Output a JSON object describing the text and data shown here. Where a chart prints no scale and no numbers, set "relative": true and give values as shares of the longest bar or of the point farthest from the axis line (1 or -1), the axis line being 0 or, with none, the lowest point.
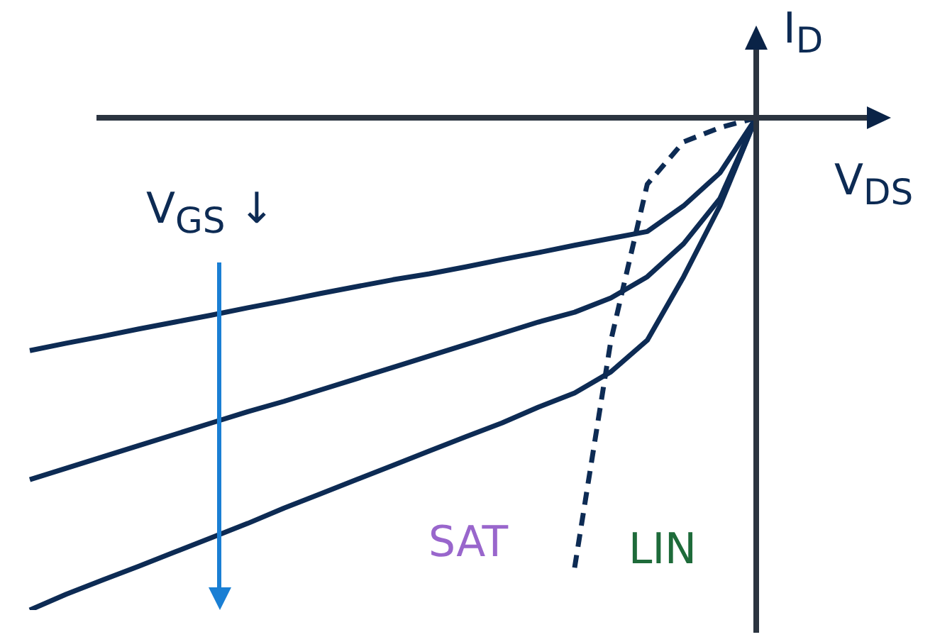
{
  "chart_data": {
    "type": "line",
    "relative": true,
    "xlabel": "V$_{DS}$",
    "ylabel": "I$_{D}$",
    "annotations": [
      "V$_{GS}$ ↓",
      "SAT",
      "LIN"
    ],
    "categories": [
      null,
      null,
      null,
      null,
      null,
      null,
      null,
      null,
      null,
      null,
      null,
      null,
      null,
      null,
      null,
      null,
      null,
      null,
      null,
      null,
      null
    ],
    "grid": false,
    "legend": false,
    "marker": "none",
    "series": [
      {
        "color": "#0d2b54",
        "line_style": "solid",
        "values": [
          -0.473,
          -0.458,
          -0.444,
          -0.429,
          -0.415,
          -0.401,
          -0.386,
          -0.372,
          -0.357,
          -0.343,
          -0.329,
          -0.317,
          -0.303,
          -0.288,
          -0.274,
          -0.259,
          -0.245,
          -0.231,
          -0.179,
          -0.112,
          0
        ]
      },
      {
        "color": "#0d2b54",
        "line_style": "solid",
        "values": [
          -0.735,
          -0.712,
          -0.689,
          -0.666,
          -0.643,
          -0.62,
          -0.597,
          -0.576,
          -0.553,
          -0.53,
          -0.507,
          -0.484,
          -0.461,
          -0.438,
          -0.415,
          -0.395,
          -0.366,
          -0.323,
          -0.256,
          -0.164,
          0
        ]
      },
      {
        "color": "#0d2b54",
        "line_style": "solid",
        "values": [
          -1,
          -0.968,
          -0.939,
          -0.911,
          -0.882,
          -0.853,
          -0.824,
          -0.793,
          -0.764,
          -0.735,
          -0.706,
          -0.677,
          -0.648,
          -0.62,
          -0.588,
          -0.559,
          -0.516,
          -0.452,
          -0.323,
          -0.179,
          0
        ]
      },
      {
        "color": "#0d2b54",
        "line_style": "dashed",
        "values": [
          null,
          null,
          null,
          null,
          null,
          null,
          null,
          null,
          null,
          null,
          null,
          null,
          null,
          null,
          null,
          -0.914,
          -0.452,
          -0.135,
          -0.049,
          -0.02,
          0
        ]
      }
    ]
  }
}
